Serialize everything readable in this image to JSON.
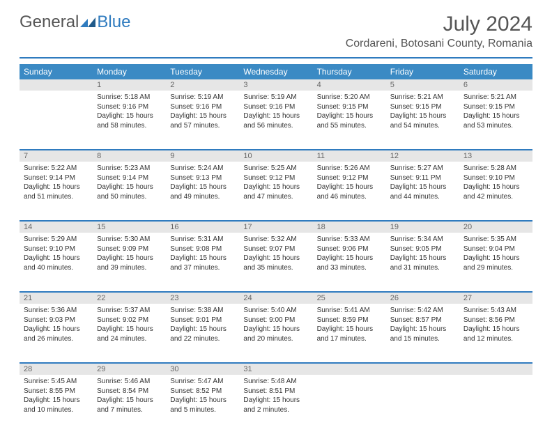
{
  "logo": {
    "text1": "General",
    "text2": "Blue"
  },
  "header": {
    "month_title": "July 2024",
    "location": "Cordareni, Botosani County, Romania"
  },
  "colors": {
    "accent": "#2f7bbf",
    "header_bg": "#3b8ac4",
    "daynum_bg": "#e6e6e6",
    "text": "#333333",
    "muted": "#555555"
  },
  "weekdays": [
    "Sunday",
    "Monday",
    "Tuesday",
    "Wednesday",
    "Thursday",
    "Friday",
    "Saturday"
  ],
  "weeks": [
    [
      {
        "day": "",
        "sunrise": "",
        "sunset": "",
        "daylight": ""
      },
      {
        "day": "1",
        "sunrise": "Sunrise: 5:18 AM",
        "sunset": "Sunset: 9:16 PM",
        "daylight": "Daylight: 15 hours and 58 minutes."
      },
      {
        "day": "2",
        "sunrise": "Sunrise: 5:19 AM",
        "sunset": "Sunset: 9:16 PM",
        "daylight": "Daylight: 15 hours and 57 minutes."
      },
      {
        "day": "3",
        "sunrise": "Sunrise: 5:19 AM",
        "sunset": "Sunset: 9:16 PM",
        "daylight": "Daylight: 15 hours and 56 minutes."
      },
      {
        "day": "4",
        "sunrise": "Sunrise: 5:20 AM",
        "sunset": "Sunset: 9:15 PM",
        "daylight": "Daylight: 15 hours and 55 minutes."
      },
      {
        "day": "5",
        "sunrise": "Sunrise: 5:21 AM",
        "sunset": "Sunset: 9:15 PM",
        "daylight": "Daylight: 15 hours and 54 minutes."
      },
      {
        "day": "6",
        "sunrise": "Sunrise: 5:21 AM",
        "sunset": "Sunset: 9:15 PM",
        "daylight": "Daylight: 15 hours and 53 minutes."
      }
    ],
    [
      {
        "day": "7",
        "sunrise": "Sunrise: 5:22 AM",
        "sunset": "Sunset: 9:14 PM",
        "daylight": "Daylight: 15 hours and 51 minutes."
      },
      {
        "day": "8",
        "sunrise": "Sunrise: 5:23 AM",
        "sunset": "Sunset: 9:14 PM",
        "daylight": "Daylight: 15 hours and 50 minutes."
      },
      {
        "day": "9",
        "sunrise": "Sunrise: 5:24 AM",
        "sunset": "Sunset: 9:13 PM",
        "daylight": "Daylight: 15 hours and 49 minutes."
      },
      {
        "day": "10",
        "sunrise": "Sunrise: 5:25 AM",
        "sunset": "Sunset: 9:12 PM",
        "daylight": "Daylight: 15 hours and 47 minutes."
      },
      {
        "day": "11",
        "sunrise": "Sunrise: 5:26 AM",
        "sunset": "Sunset: 9:12 PM",
        "daylight": "Daylight: 15 hours and 46 minutes."
      },
      {
        "day": "12",
        "sunrise": "Sunrise: 5:27 AM",
        "sunset": "Sunset: 9:11 PM",
        "daylight": "Daylight: 15 hours and 44 minutes."
      },
      {
        "day": "13",
        "sunrise": "Sunrise: 5:28 AM",
        "sunset": "Sunset: 9:10 PM",
        "daylight": "Daylight: 15 hours and 42 minutes."
      }
    ],
    [
      {
        "day": "14",
        "sunrise": "Sunrise: 5:29 AM",
        "sunset": "Sunset: 9:10 PM",
        "daylight": "Daylight: 15 hours and 40 minutes."
      },
      {
        "day": "15",
        "sunrise": "Sunrise: 5:30 AM",
        "sunset": "Sunset: 9:09 PM",
        "daylight": "Daylight: 15 hours and 39 minutes."
      },
      {
        "day": "16",
        "sunrise": "Sunrise: 5:31 AM",
        "sunset": "Sunset: 9:08 PM",
        "daylight": "Daylight: 15 hours and 37 minutes."
      },
      {
        "day": "17",
        "sunrise": "Sunrise: 5:32 AM",
        "sunset": "Sunset: 9:07 PM",
        "daylight": "Daylight: 15 hours and 35 minutes."
      },
      {
        "day": "18",
        "sunrise": "Sunrise: 5:33 AM",
        "sunset": "Sunset: 9:06 PM",
        "daylight": "Daylight: 15 hours and 33 minutes."
      },
      {
        "day": "19",
        "sunrise": "Sunrise: 5:34 AM",
        "sunset": "Sunset: 9:05 PM",
        "daylight": "Daylight: 15 hours and 31 minutes."
      },
      {
        "day": "20",
        "sunrise": "Sunrise: 5:35 AM",
        "sunset": "Sunset: 9:04 PM",
        "daylight": "Daylight: 15 hours and 29 minutes."
      }
    ],
    [
      {
        "day": "21",
        "sunrise": "Sunrise: 5:36 AM",
        "sunset": "Sunset: 9:03 PM",
        "daylight": "Daylight: 15 hours and 26 minutes."
      },
      {
        "day": "22",
        "sunrise": "Sunrise: 5:37 AM",
        "sunset": "Sunset: 9:02 PM",
        "daylight": "Daylight: 15 hours and 24 minutes."
      },
      {
        "day": "23",
        "sunrise": "Sunrise: 5:38 AM",
        "sunset": "Sunset: 9:01 PM",
        "daylight": "Daylight: 15 hours and 22 minutes."
      },
      {
        "day": "24",
        "sunrise": "Sunrise: 5:40 AM",
        "sunset": "Sunset: 9:00 PM",
        "daylight": "Daylight: 15 hours and 20 minutes."
      },
      {
        "day": "25",
        "sunrise": "Sunrise: 5:41 AM",
        "sunset": "Sunset: 8:59 PM",
        "daylight": "Daylight: 15 hours and 17 minutes."
      },
      {
        "day": "26",
        "sunrise": "Sunrise: 5:42 AM",
        "sunset": "Sunset: 8:57 PM",
        "daylight": "Daylight: 15 hours and 15 minutes."
      },
      {
        "day": "27",
        "sunrise": "Sunrise: 5:43 AM",
        "sunset": "Sunset: 8:56 PM",
        "daylight": "Daylight: 15 hours and 12 minutes."
      }
    ],
    [
      {
        "day": "28",
        "sunrise": "Sunrise: 5:45 AM",
        "sunset": "Sunset: 8:55 PM",
        "daylight": "Daylight: 15 hours and 10 minutes."
      },
      {
        "day": "29",
        "sunrise": "Sunrise: 5:46 AM",
        "sunset": "Sunset: 8:54 PM",
        "daylight": "Daylight: 15 hours and 7 minutes."
      },
      {
        "day": "30",
        "sunrise": "Sunrise: 5:47 AM",
        "sunset": "Sunset: 8:52 PM",
        "daylight": "Daylight: 15 hours and 5 minutes."
      },
      {
        "day": "31",
        "sunrise": "Sunrise: 5:48 AM",
        "sunset": "Sunset: 8:51 PM",
        "daylight": "Daylight: 15 hours and 2 minutes."
      },
      {
        "day": "",
        "sunrise": "",
        "sunset": "",
        "daylight": ""
      },
      {
        "day": "",
        "sunrise": "",
        "sunset": "",
        "daylight": ""
      },
      {
        "day": "",
        "sunrise": "",
        "sunset": "",
        "daylight": ""
      }
    ]
  ]
}
